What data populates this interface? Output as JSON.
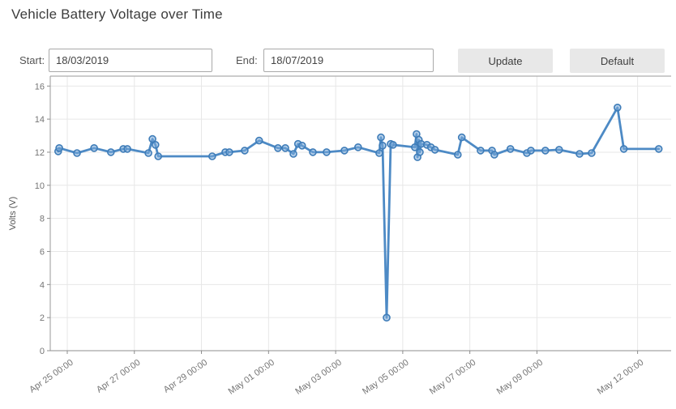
{
  "window": {
    "title": "Vehicle Battery Voltage over Time"
  },
  "controls": {
    "start_label": "Start:",
    "start_value": "18/03/2019",
    "end_label": "End:",
    "end_value": "18/07/2019",
    "update_label": "Update",
    "default_label": "Default"
  },
  "chart_data": {
    "type": "line",
    "title": "Vehicle Battery Voltage over Time",
    "xlabel": "",
    "ylabel": "Volts (V)",
    "ylim": [
      0,
      16.6
    ],
    "y_ticks": [
      0,
      2,
      4,
      6,
      8,
      10,
      12,
      14,
      16
    ],
    "grid": true,
    "legend": "none",
    "x_domain_days": [
      -0.507,
      18.0
    ],
    "x_epoch": "day 0 = Apr 25 00:00",
    "x_ticks": [
      {
        "label": "Apr 25 00:00",
        "day": 0
      },
      {
        "label": "Apr 27 00:00",
        "day": 2
      },
      {
        "label": "Apr 29 00:00",
        "day": 4
      },
      {
        "label": "May 01 00:00",
        "day": 6
      },
      {
        "label": "May 03 00:00",
        "day": 8
      },
      {
        "label": "May 05 00:00",
        "day": 10
      },
      {
        "label": "May 07 00:00",
        "day": 12
      },
      {
        "label": "May 09 00:00",
        "day": 14
      },
      {
        "label": "May 12 00:00",
        "day": 17
      }
    ],
    "series": [
      {
        "name": "Battery Voltage",
        "points": [
          {
            "t": "Apr 24 17:30",
            "day": -0.27,
            "volts": 12.05
          },
          {
            "t": "Apr 24 18:15",
            "day": -0.24,
            "volts": 12.25
          },
          {
            "t": "Apr 25 07:00",
            "day": 0.29,
            "volts": 11.95
          },
          {
            "t": "Apr 25 19:00",
            "day": 0.8,
            "volts": 12.25
          },
          {
            "t": "Apr 26 07:00",
            "day": 1.3,
            "volts": 12.0
          },
          {
            "t": "Apr 26 16:00",
            "day": 1.67,
            "volts": 12.2
          },
          {
            "t": "Apr 26 19:00",
            "day": 1.79,
            "volts": 12.2
          },
          {
            "t": "Apr 27 10:00",
            "day": 2.42,
            "volts": 11.95
          },
          {
            "t": "Apr 27 13:00",
            "day": 2.54,
            "volts": 12.8
          },
          {
            "t": "Apr 27 15:00",
            "day": 2.63,
            "volts": 12.45
          },
          {
            "t": "Apr 27 17:00",
            "day": 2.71,
            "volts": 11.75
          },
          {
            "t": "Apr 29 07:45",
            "day": 4.32,
            "volts": 11.75
          },
          {
            "t": "Apr 29 17:00",
            "day": 4.71,
            "volts": 12.0
          },
          {
            "t": "Apr 29 20:00",
            "day": 4.83,
            "volts": 12.0
          },
          {
            "t": "Apr 30 07:00",
            "day": 5.29,
            "volts": 12.1
          },
          {
            "t": "Apr 30 17:15",
            "day": 5.72,
            "volts": 12.7
          },
          {
            "t": "May 01 06:45",
            "day": 6.28,
            "volts": 12.25
          },
          {
            "t": "May 01 12:00",
            "day": 6.5,
            "volts": 12.25
          },
          {
            "t": "May 01 17:45",
            "day": 6.74,
            "volts": 11.9
          },
          {
            "t": "May 01 21:00",
            "day": 6.88,
            "volts": 12.5
          },
          {
            "t": "May 02 00:00",
            "day": 7.0,
            "volts": 12.4
          },
          {
            "t": "May 02 07:45",
            "day": 7.32,
            "volts": 12.0
          },
          {
            "t": "May 02 17:30",
            "day": 7.73,
            "volts": 12.0
          },
          {
            "t": "May 03 06:15",
            "day": 8.26,
            "volts": 12.1
          },
          {
            "t": "May 03 16:00",
            "day": 8.67,
            "volts": 12.3
          },
          {
            "t": "May 04 07:15",
            "day": 9.3,
            "volts": 11.95
          },
          {
            "t": "May 04 08:30",
            "day": 9.35,
            "volts": 12.9
          },
          {
            "t": "May 04 09:30",
            "day": 9.4,
            "volts": 12.4
          },
          {
            "t": "May 04 12:30",
            "day": 9.52,
            "volts": 2.0
          },
          {
            "t": "May 04 15:20",
            "day": 9.64,
            "volts": 12.5
          },
          {
            "t": "May 04 17:00",
            "day": 9.71,
            "volts": 12.45
          },
          {
            "t": "May 05 08:40",
            "day": 10.36,
            "volts": 12.3
          },
          {
            "t": "May 05 09:50",
            "day": 10.41,
            "volts": 13.1
          },
          {
            "t": "May 05 10:30",
            "day": 10.44,
            "volts": 11.7
          },
          {
            "t": "May 05 11:30",
            "day": 10.48,
            "volts": 12.75
          },
          {
            "t": "May 05 12:15",
            "day": 10.51,
            "volts": 12.0
          },
          {
            "t": "May 05 13:10",
            "day": 10.55,
            "volts": 12.5
          },
          {
            "t": "May 05 17:15",
            "day": 10.72,
            "volts": 12.45
          },
          {
            "t": "May 05 20:10",
            "day": 10.84,
            "volts": 12.3
          },
          {
            "t": "May 05 23:00",
            "day": 10.96,
            "volts": 12.15
          },
          {
            "t": "May 06 15:20",
            "day": 11.64,
            "volts": 11.85
          },
          {
            "t": "May 06 18:15",
            "day": 11.76,
            "volts": 12.9
          },
          {
            "t": "May 07 07:40",
            "day": 12.32,
            "volts": 12.1
          },
          {
            "t": "May 07 15:50",
            "day": 12.66,
            "volts": 12.1
          },
          {
            "t": "May 07 17:30",
            "day": 12.73,
            "volts": 11.85
          },
          {
            "t": "May 08 05:00",
            "day": 13.21,
            "volts": 12.2
          },
          {
            "t": "May 08 16:50",
            "day": 13.7,
            "volts": 11.95
          },
          {
            "t": "May 08 19:40",
            "day": 13.82,
            "volts": 12.1
          },
          {
            "t": "May 09 06:00",
            "day": 14.25,
            "volts": 12.1
          },
          {
            "t": "May 09 15:50",
            "day": 14.66,
            "volts": 12.15
          },
          {
            "t": "May 10 06:30",
            "day": 15.27,
            "volts": 11.9
          },
          {
            "t": "May 10 15:10",
            "day": 15.63,
            "volts": 11.95
          },
          {
            "t": "May 11 09:35",
            "day": 16.4,
            "volts": 14.7
          },
          {
            "t": "May 11 14:10",
            "day": 16.59,
            "volts": 12.2
          },
          {
            "t": "May 12 15:05",
            "day": 17.63,
            "volts": 12.2
          }
        ]
      }
    ],
    "colors": {
      "line": "#4d8ac5",
      "marker_fill": "#7aaad9",
      "marker_stroke": "#3e7cb8",
      "grid": "#e7e7e7",
      "axis": "#8c8c8c",
      "border": "#9a9a9a",
      "tick_text": "#757575",
      "axis_title_text": "#555555"
    }
  }
}
